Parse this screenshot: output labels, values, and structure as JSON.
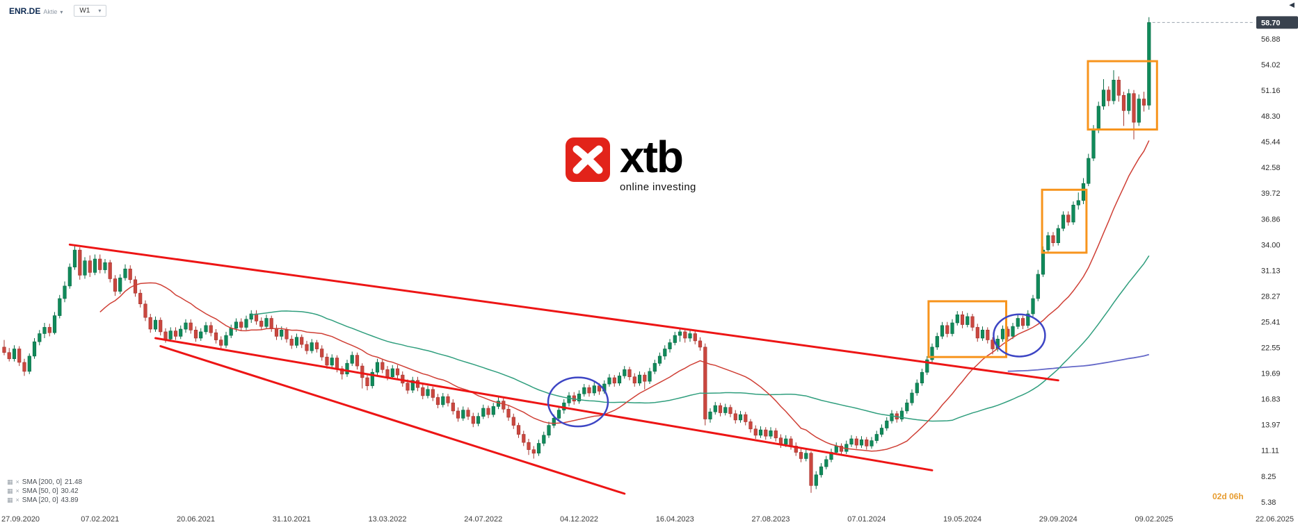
{
  "header": {
    "symbol": "ENR.DE",
    "instrument_type": "Aktie",
    "timeframe": "W1"
  },
  "watermark": {
    "brand": "xtb",
    "tagline": "online investing"
  },
  "countdown": {
    "text": "02d 06h"
  },
  "icons": {
    "caret_down": "▾",
    "collapse_left": "◀",
    "indicator_chart": "▦",
    "indicator_close": "×"
  },
  "chart_data": {
    "type": "candlestick",
    "symbol": "ENR.DE",
    "timeframe": "W1",
    "current_price": "58.70",
    "ylim": [
      5.38,
      59.5
    ],
    "price_axis_ticks": [
      "56.88",
      "54.02",
      "51.16",
      "48.30",
      "45.44",
      "42.58",
      "39.72",
      "36.86",
      "34.00",
      "31.13",
      "28.27",
      "25.41",
      "22.55",
      "19.69",
      "16.83",
      "13.97",
      "11.11",
      "8.25",
      "5.38"
    ],
    "time_axis_ticks": [
      "27.09.2020",
      "07.02.2021",
      "20.06.2021",
      "31.10.2021",
      "13.03.2022",
      "24.07.2022",
      "04.12.2022",
      "16.04.2023",
      "27.08.2023",
      "07.01.2024",
      "19.05.2024",
      "29.09.2024",
      "09.02.2025",
      "22.06.2025"
    ],
    "colors": {
      "up": "#108a5a",
      "up_stroke": "#0b6b46",
      "down": "#ca473f",
      "down_stroke": "#a6352f",
      "trendline": "#ed1515",
      "box": "#f7941d",
      "circle": "#3d45c4",
      "badge_bg": "#39424e",
      "countdown": "#e79c2f"
    },
    "candles": [
      [
        22.6,
        23.4,
        21.7,
        22.0
      ],
      [
        22.0,
        22.5,
        21.0,
        21.3
      ],
      [
        21.3,
        22.8,
        21.0,
        22.4
      ],
      [
        22.4,
        22.7,
        20.5,
        20.9
      ],
      [
        20.9,
        21.3,
        19.4,
        19.9
      ],
      [
        19.9,
        21.9,
        19.6,
        21.6
      ],
      [
        21.6,
        23.6,
        21.3,
        23.2
      ],
      [
        23.2,
        24.5,
        22.8,
        24.1
      ],
      [
        24.1,
        25.3,
        23.6,
        24.8
      ],
      [
        24.8,
        25.2,
        23.8,
        24.2
      ],
      [
        24.2,
        26.5,
        24.0,
        26.1
      ],
      [
        26.1,
        28.4,
        25.8,
        28.0
      ],
      [
        28.0,
        29.9,
        27.6,
        29.4
      ],
      [
        29.4,
        31.9,
        29.1,
        31.5
      ],
      [
        31.5,
        33.9,
        31.2,
        33.4
      ],
      [
        33.4,
        33.7,
        30.1,
        30.6
      ],
      [
        30.6,
        32.6,
        30.2,
        32.2
      ],
      [
        32.2,
        32.8,
        30.4,
        30.9
      ],
      [
        30.9,
        32.9,
        30.6,
        32.4
      ],
      [
        32.4,
        32.9,
        30.8,
        31.2
      ],
      [
        31.2,
        32.4,
        30.8,
        32.0
      ],
      [
        32.0,
        32.3,
        29.8,
        30.2
      ],
      [
        30.2,
        30.6,
        28.3,
        28.8
      ],
      [
        28.8,
        30.7,
        28.5,
        30.3
      ],
      [
        30.3,
        31.8,
        30.0,
        31.3
      ],
      [
        31.3,
        31.7,
        29.7,
        30.1
      ],
      [
        30.1,
        30.5,
        28.2,
        28.6
      ],
      [
        28.6,
        29.0,
        27.0,
        27.4
      ],
      [
        27.4,
        27.8,
        25.5,
        25.9
      ],
      [
        25.9,
        26.3,
        24.2,
        24.6
      ],
      [
        24.6,
        26.0,
        24.3,
        25.6
      ],
      [
        25.6,
        25.9,
        23.9,
        24.3
      ],
      [
        24.3,
        24.7,
        23.1,
        23.5
      ],
      [
        23.5,
        24.8,
        23.2,
        24.4
      ],
      [
        24.4,
        24.8,
        23.4,
        23.8
      ],
      [
        23.8,
        25.0,
        23.5,
        24.6
      ],
      [
        24.6,
        25.7,
        24.2,
        25.3
      ],
      [
        25.3,
        25.7,
        24.1,
        24.5
      ],
      [
        24.5,
        24.9,
        23.2,
        23.6
      ],
      [
        23.6,
        24.7,
        23.3,
        24.3
      ],
      [
        24.3,
        25.4,
        24.0,
        25.0
      ],
      [
        25.0,
        25.4,
        23.8,
        24.2
      ],
      [
        24.2,
        24.6,
        23.0,
        23.4
      ],
      [
        23.4,
        23.8,
        22.4,
        22.8
      ],
      [
        22.8,
        24.3,
        22.5,
        23.9
      ],
      [
        23.9,
        25.1,
        23.6,
        24.7
      ],
      [
        24.7,
        25.8,
        24.3,
        25.4
      ],
      [
        25.4,
        25.8,
        24.4,
        24.8
      ],
      [
        24.8,
        26.1,
        24.5,
        25.7
      ],
      [
        25.7,
        26.7,
        25.3,
        26.3
      ],
      [
        26.3,
        26.7,
        25.1,
        25.5
      ],
      [
        25.5,
        25.9,
        24.5,
        24.9
      ],
      [
        24.9,
        26.2,
        24.6,
        25.8
      ],
      [
        25.8,
        26.1,
        24.3,
        24.7
      ],
      [
        24.7,
        25.1,
        23.4,
        23.8
      ],
      [
        23.8,
        24.9,
        23.4,
        24.5
      ],
      [
        24.5,
        24.8,
        23.1,
        23.5
      ],
      [
        23.5,
        23.9,
        22.4,
        22.8
      ],
      [
        22.8,
        24.1,
        22.5,
        23.7
      ],
      [
        23.7,
        24.0,
        22.5,
        22.9
      ],
      [
        22.9,
        23.3,
        21.8,
        22.2
      ],
      [
        22.2,
        23.5,
        21.9,
        23.1
      ],
      [
        23.1,
        23.4,
        22.0,
        22.4
      ],
      [
        22.4,
        22.8,
        21.1,
        21.5
      ],
      [
        21.5,
        21.9,
        20.2,
        20.6
      ],
      [
        20.6,
        21.8,
        20.3,
        21.4
      ],
      [
        21.4,
        21.7,
        19.8,
        20.2
      ],
      [
        20.2,
        20.5,
        19.0,
        19.6
      ],
      [
        19.6,
        21.2,
        19.3,
        20.8
      ],
      [
        20.8,
        22.1,
        20.5,
        21.7
      ],
      [
        21.7,
        22.0,
        20.1,
        20.5
      ],
      [
        20.5,
        20.8,
        18.0,
        19.2
      ],
      [
        19.2,
        19.6,
        17.8,
        18.3
      ],
      [
        18.3,
        20.2,
        18.0,
        19.8
      ],
      [
        19.8,
        21.3,
        19.5,
        20.9
      ],
      [
        20.9,
        21.3,
        19.7,
        20.1
      ],
      [
        20.1,
        20.5,
        18.9,
        19.3
      ],
      [
        19.3,
        20.6,
        19.0,
        20.2
      ],
      [
        20.2,
        20.6,
        19.1,
        19.5
      ],
      [
        19.5,
        19.9,
        18.2,
        18.6
      ],
      [
        18.6,
        19.0,
        17.4,
        17.8
      ],
      [
        17.8,
        19.3,
        17.5,
        18.9
      ],
      [
        18.9,
        19.3,
        17.7,
        18.1
      ],
      [
        18.1,
        18.5,
        16.8,
        17.2
      ],
      [
        17.2,
        18.3,
        16.9,
        17.9
      ],
      [
        17.9,
        18.2,
        16.6,
        17.0
      ],
      [
        17.0,
        17.4,
        15.8,
        16.2
      ],
      [
        16.2,
        17.5,
        15.9,
        17.1
      ],
      [
        17.1,
        17.4,
        16.0,
        16.4
      ],
      [
        16.4,
        16.8,
        15.1,
        15.5
      ],
      [
        15.5,
        15.9,
        14.3,
        14.7
      ],
      [
        14.7,
        16.0,
        14.4,
        15.6
      ],
      [
        15.6,
        15.9,
        14.5,
        14.9
      ],
      [
        14.9,
        15.3,
        13.7,
        14.1
      ],
      [
        14.1,
        15.3,
        13.8,
        14.9
      ],
      [
        14.9,
        16.2,
        14.6,
        15.8
      ],
      [
        15.8,
        16.1,
        14.7,
        15.1
      ],
      [
        15.1,
        16.4,
        14.8,
        16.0
      ],
      [
        16.0,
        17.0,
        15.7,
        16.6
      ],
      [
        16.6,
        16.9,
        15.3,
        15.7
      ],
      [
        15.7,
        16.1,
        14.4,
        14.8
      ],
      [
        14.8,
        15.2,
        13.5,
        13.9
      ],
      [
        13.9,
        14.2,
        12.5,
        12.9
      ],
      [
        12.9,
        13.3,
        11.6,
        12.0
      ],
      [
        12.0,
        12.4,
        10.6,
        11.2
      ],
      [
        11.2,
        11.6,
        10.2,
        10.8
      ],
      [
        10.8,
        12.3,
        10.5,
        11.9
      ],
      [
        11.9,
        13.2,
        11.6,
        12.8
      ],
      [
        12.8,
        14.3,
        12.5,
        13.9
      ],
      [
        13.9,
        15.1,
        13.6,
        14.7
      ],
      [
        14.7,
        16.0,
        14.4,
        15.6
      ],
      [
        15.6,
        16.8,
        15.2,
        16.4
      ],
      [
        16.4,
        17.6,
        16.0,
        17.2
      ],
      [
        17.2,
        17.6,
        16.2,
        16.6
      ],
      [
        16.6,
        17.8,
        16.3,
        17.4
      ],
      [
        17.4,
        18.5,
        17.1,
        18.1
      ],
      [
        18.1,
        18.4,
        17.1,
        17.5
      ],
      [
        17.5,
        18.7,
        17.2,
        18.3
      ],
      [
        18.3,
        18.6,
        17.3,
        17.7
      ],
      [
        17.7,
        18.9,
        17.4,
        18.5
      ],
      [
        18.5,
        19.6,
        18.2,
        19.2
      ],
      [
        19.2,
        19.5,
        18.2,
        18.6
      ],
      [
        18.6,
        19.8,
        18.3,
        19.4
      ],
      [
        19.4,
        20.5,
        19.1,
        20.1
      ],
      [
        20.1,
        20.4,
        18.9,
        19.3
      ],
      [
        19.3,
        19.7,
        18.2,
        18.6
      ],
      [
        18.6,
        19.9,
        18.3,
        19.5
      ],
      [
        19.5,
        19.8,
        17.9,
        18.8
      ],
      [
        18.8,
        20.3,
        18.5,
        19.9
      ],
      [
        19.9,
        21.2,
        19.6,
        20.8
      ],
      [
        20.8,
        22.0,
        20.5,
        21.6
      ],
      [
        21.6,
        22.8,
        21.2,
        22.4
      ],
      [
        22.4,
        23.5,
        22.0,
        23.1
      ],
      [
        23.1,
        24.3,
        22.8,
        23.9
      ],
      [
        23.9,
        24.6,
        23.2,
        24.3
      ],
      [
        24.3,
        24.6,
        23.1,
        23.6
      ],
      [
        23.6,
        24.5,
        23.2,
        24.1
      ],
      [
        24.1,
        24.4,
        22.9,
        23.3
      ],
      [
        23.3,
        23.7,
        22.2,
        22.6
      ],
      [
        22.6,
        23.0,
        13.9,
        14.6
      ],
      [
        14.6,
        15.8,
        14.2,
        15.4
      ],
      [
        15.4,
        16.5,
        15.1,
        16.1
      ],
      [
        16.1,
        16.4,
        14.9,
        15.3
      ],
      [
        15.3,
        16.3,
        15.0,
        15.9
      ],
      [
        15.9,
        16.2,
        14.8,
        15.2
      ],
      [
        15.2,
        15.6,
        14.1,
        14.5
      ],
      [
        14.5,
        15.5,
        14.2,
        15.1
      ],
      [
        15.1,
        15.4,
        13.9,
        14.3
      ],
      [
        14.3,
        14.6,
        13.1,
        13.5
      ],
      [
        13.5,
        13.9,
        12.4,
        12.8
      ],
      [
        12.8,
        13.8,
        12.5,
        13.4
      ],
      [
        13.4,
        13.7,
        12.3,
        12.7
      ],
      [
        12.7,
        13.7,
        12.4,
        13.3
      ],
      [
        13.3,
        13.6,
        12.1,
        12.5
      ],
      [
        12.5,
        12.9,
        11.4,
        11.8
      ],
      [
        11.8,
        12.8,
        11.5,
        12.4
      ],
      [
        12.4,
        12.7,
        11.2,
        11.6
      ],
      [
        11.6,
        12.0,
        10.5,
        10.9
      ],
      [
        10.9,
        11.3,
        9.8,
        10.2
      ],
      [
        10.2,
        11.2,
        9.9,
        10.8
      ],
      [
        10.8,
        11.0,
        6.4,
        7.2
      ],
      [
        7.2,
        8.8,
        6.8,
        8.4
      ],
      [
        8.4,
        9.7,
        8.1,
        9.3
      ],
      [
        9.3,
        10.5,
        9.0,
        10.1
      ],
      [
        10.1,
        11.3,
        9.8,
        10.9
      ],
      [
        10.9,
        12.0,
        10.6,
        11.6
      ],
      [
        11.6,
        11.9,
        10.6,
        11.0
      ],
      [
        11.0,
        12.2,
        10.7,
        11.8
      ],
      [
        11.8,
        12.8,
        11.5,
        12.4
      ],
      [
        12.4,
        12.7,
        11.3,
        11.7
      ],
      [
        11.7,
        12.7,
        11.4,
        12.3
      ],
      [
        12.3,
        12.6,
        11.2,
        11.6
      ],
      [
        11.6,
        12.6,
        11.3,
        12.2
      ],
      [
        12.2,
        13.3,
        11.9,
        12.9
      ],
      [
        12.9,
        14.0,
        12.6,
        13.6
      ],
      [
        13.6,
        14.8,
        13.3,
        14.4
      ],
      [
        14.4,
        15.6,
        14.1,
        15.2
      ],
      [
        15.2,
        15.5,
        14.2,
        14.6
      ],
      [
        14.6,
        15.9,
        14.3,
        15.5
      ],
      [
        15.5,
        16.8,
        15.2,
        16.4
      ],
      [
        16.4,
        17.9,
        16.1,
        17.5
      ],
      [
        17.5,
        19.0,
        17.2,
        18.6
      ],
      [
        18.6,
        20.2,
        18.3,
        19.8
      ],
      [
        19.8,
        21.6,
        19.5,
        21.2
      ],
      [
        21.2,
        23.0,
        20.9,
        22.6
      ],
      [
        22.6,
        24.2,
        22.3,
        23.8
      ],
      [
        23.8,
        25.4,
        23.5,
        25.0
      ],
      [
        25.0,
        25.4,
        23.7,
        24.1
      ],
      [
        24.1,
        25.7,
        23.8,
        25.3
      ],
      [
        25.3,
        26.6,
        25.0,
        26.2
      ],
      [
        26.2,
        26.6,
        24.7,
        25.1
      ],
      [
        25.1,
        26.4,
        24.8,
        26.0
      ],
      [
        26.0,
        26.3,
        24.4,
        24.8
      ],
      [
        24.8,
        25.2,
        23.2,
        23.6
      ],
      [
        23.6,
        24.9,
        23.3,
        24.5
      ],
      [
        24.5,
        24.8,
        23.0,
        23.4
      ],
      [
        23.4,
        23.7,
        21.8,
        22.4
      ],
      [
        22.4,
        23.9,
        22.1,
        23.5
      ],
      [
        23.5,
        25.0,
        23.2,
        24.6
      ],
      [
        24.6,
        24.9,
        23.4,
        23.8
      ],
      [
        23.8,
        25.3,
        23.5,
        24.9
      ],
      [
        24.9,
        26.2,
        24.6,
        25.8
      ],
      [
        25.8,
        26.1,
        24.6,
        25.0
      ],
      [
        25.0,
        26.7,
        24.7,
        26.3
      ],
      [
        26.3,
        28.4,
        26.0,
        28.0
      ],
      [
        28.0,
        31.2,
        27.7,
        30.7
      ],
      [
        30.7,
        33.8,
        30.4,
        33.4
      ],
      [
        33.4,
        35.4,
        33.0,
        35.0
      ],
      [
        35.0,
        35.4,
        33.8,
        34.2
      ],
      [
        34.2,
        36.2,
        33.9,
        35.8
      ],
      [
        35.8,
        37.7,
        35.5,
        37.3
      ],
      [
        37.3,
        37.7,
        36.1,
        36.5
      ],
      [
        36.5,
        38.8,
        36.2,
        38.4
      ],
      [
        38.4,
        39.8,
        37.9,
        38.9
      ],
      [
        38.9,
        41.4,
        38.5,
        40.8
      ],
      [
        40.8,
        44.1,
        40.5,
        43.6
      ],
      [
        43.6,
        47.3,
        43.3,
        46.8
      ],
      [
        46.8,
        49.9,
        46.4,
        49.4
      ],
      [
        49.4,
        52.4,
        49.0,
        51.2
      ],
      [
        51.2,
        51.6,
        49.4,
        50.0
      ],
      [
        50.0,
        53.4,
        49.6,
        52.3
      ],
      [
        52.3,
        52.7,
        49.9,
        50.6
      ],
      [
        50.6,
        51.0,
        47.2,
        48.9
      ],
      [
        48.9,
        51.3,
        48.5,
        50.8
      ],
      [
        50.8,
        51.2,
        45.7,
        47.6
      ],
      [
        47.6,
        50.7,
        47.2,
        50.2
      ],
      [
        50.2,
        51.0,
        48.8,
        49.5
      ],
      [
        49.5,
        59.3,
        49.0,
        58.7
      ]
    ],
    "overlays": {
      "smas": [
        {
          "label": "SMA [200, 0]",
          "value": "21.48",
          "period": 200,
          "color": "#6468c8"
        },
        {
          "label": "SMA [50, 0]",
          "value": "30.42",
          "period": 50,
          "color": "#2f9e7d"
        },
        {
          "label": "SMA [20, 0]",
          "value": "43.89",
          "period": 20,
          "color": "#cf3f35"
        }
      ],
      "trendlines": [
        {
          "x1_week": 13,
          "y1_price": 34.0,
          "x2_week": 209,
          "y2_price": 18.9
        },
        {
          "x1_week": 30,
          "y1_price": 23.6,
          "x2_week": 184,
          "y2_price": 8.9
        },
        {
          "x1_week": 31,
          "y1_price": 22.7,
          "x2_week": 123,
          "y2_price": 6.3
        }
      ],
      "boxes": [
        {
          "week_start": 183.3,
          "week_end": 198.7,
          "price_low": 21.5,
          "price_high": 27.7
        },
        {
          "week_start": 205.8,
          "week_end": 214.6,
          "price_low": 33.1,
          "price_high": 40.1
        },
        {
          "week_start": 214.9,
          "week_end": 228.6,
          "price_low": 46.8,
          "price_high": 54.4
        }
      ],
      "circles": [
        {
          "week": 113.8,
          "price": 16.5,
          "r": 43
        },
        {
          "week": 201.3,
          "price": 23.9,
          "r": 37
        }
      ]
    }
  }
}
